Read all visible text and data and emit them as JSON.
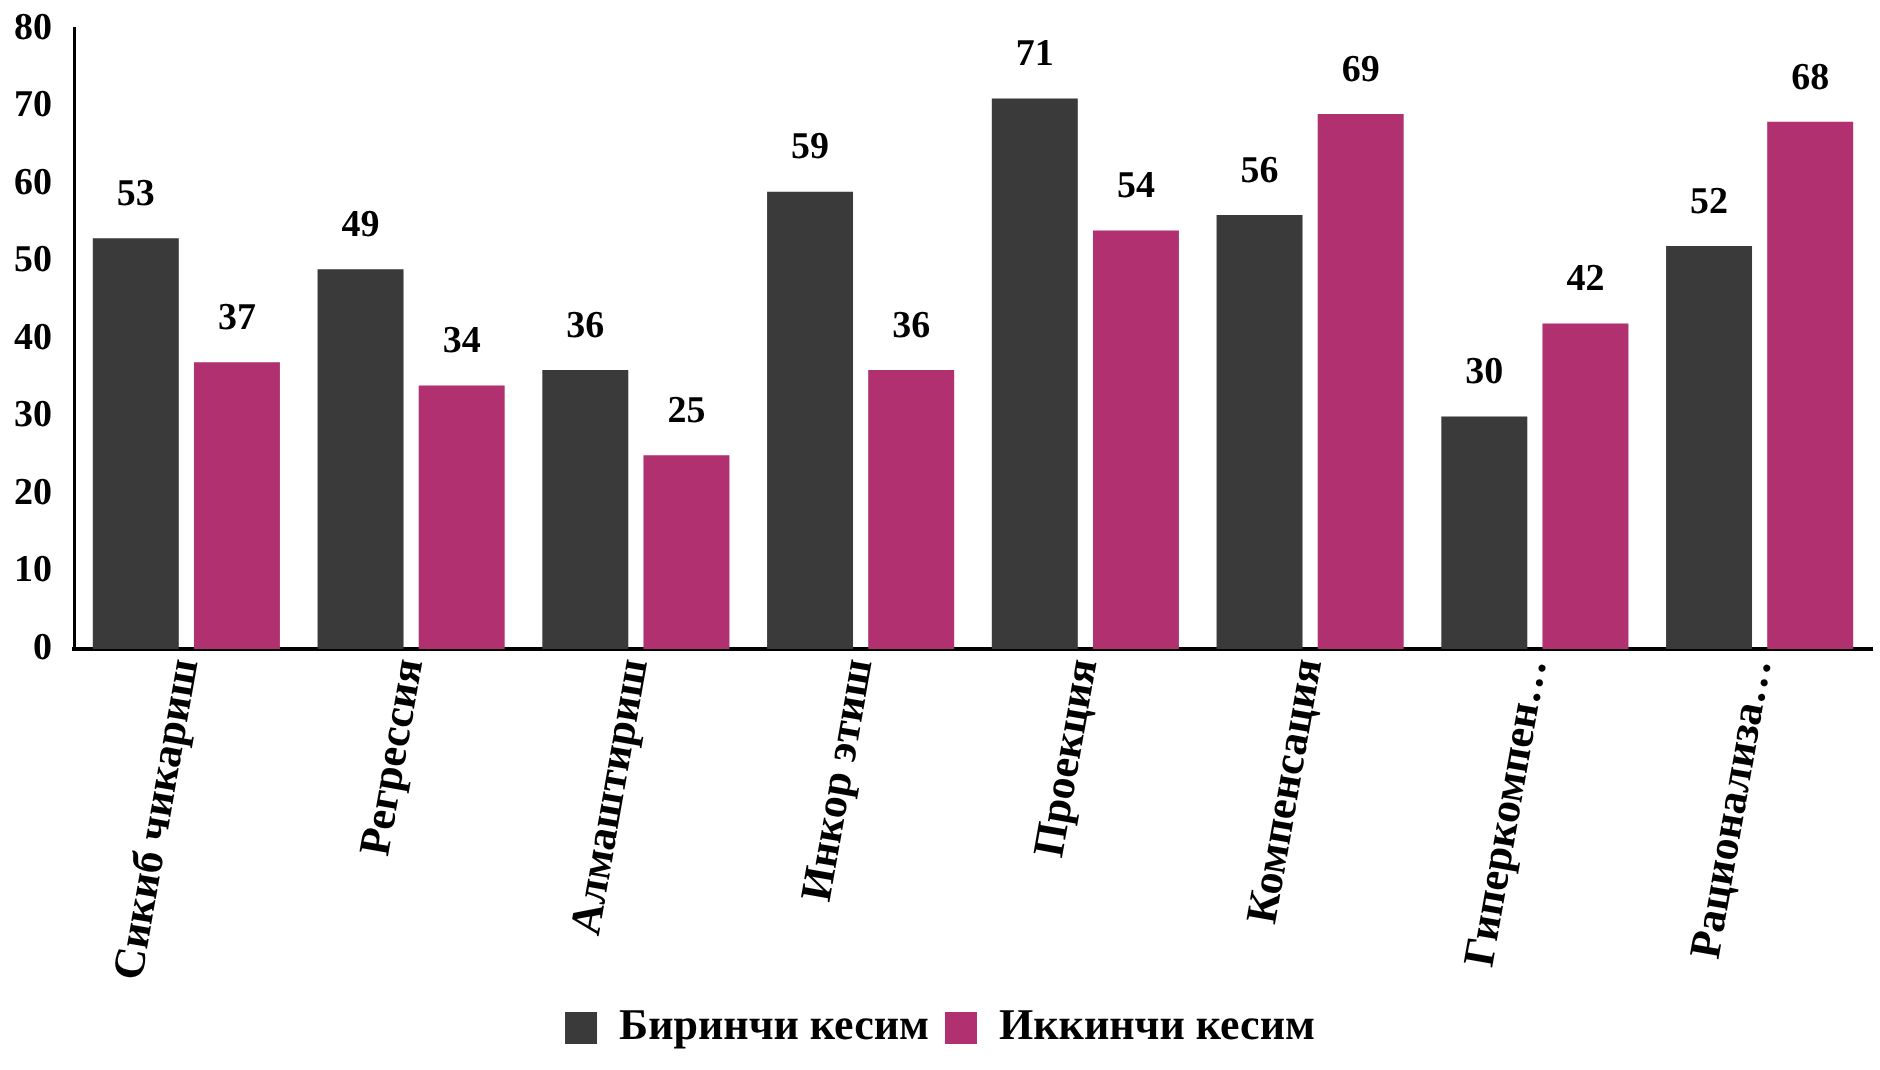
{
  "chart_data": {
    "type": "bar",
    "categories": [
      "Сикиб чикариш",
      "Регрессия",
      "Алмаштириш",
      "Инкор этиш",
      "Проекция",
      "Компенсация",
      "Гиперкомпен…",
      "Рационализа…"
    ],
    "series": [
      {
        "name": "Биринчи кесим",
        "color": "#3a3a3a",
        "values": [
          53,
          49,
          36,
          59,
          71,
          56,
          30,
          52
        ]
      },
      {
        "name": "Иккинчи кесим",
        "color": "#b03070",
        "values": [
          37,
          34,
          25,
          36,
          54,
          69,
          42,
          68
        ]
      }
    ],
    "ylim": [
      0,
      80
    ],
    "yticks": [
      0,
      10,
      20,
      30,
      40,
      50,
      60,
      70,
      80
    ],
    "grid": false,
    "legend": "bottom",
    "data_labels": true
  }
}
